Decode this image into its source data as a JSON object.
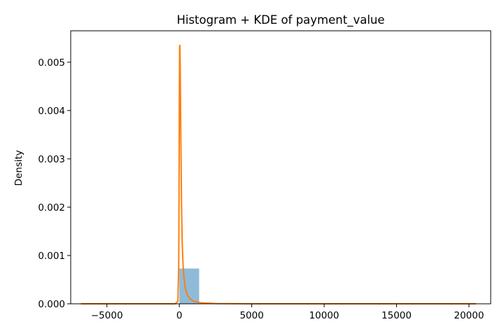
{
  "chart_data": {
    "type": "bar",
    "title": "Histogram + KDE of payment_value",
    "xlabel": "",
    "ylabel": "Density",
    "xlim": [
      -7500,
      21500
    ],
    "ylim": [
      0,
      0.00565
    ],
    "x_ticks": [
      -5000,
      0,
      5000,
      10000,
      15000,
      20000
    ],
    "x_tick_labels": [
      "−5000",
      "0",
      "5000",
      "10000",
      "15000",
      "20000"
    ],
    "y_ticks": [
      0,
      0.001,
      0.002,
      0.003,
      0.004,
      0.005
    ],
    "y_tick_labels": [
      "0.000",
      "0.001",
      "0.002",
      "0.003",
      "0.004",
      "0.005"
    ],
    "grid": false,
    "legend": "none",
    "histogram": {
      "color": "#1f77b4",
      "alpha": 0.5,
      "bins": [
        {
          "x0": 0,
          "x1": 1370,
          "density": 0.00073
        },
        {
          "x0": 1370,
          "x1": 2740,
          "density": 8e-06
        },
        {
          "x0": 2740,
          "x1": 4110,
          "density": 2e-06
        }
      ]
    },
    "series": [
      {
        "type": "line",
        "color": "#ff7f0e",
        "x": [
          -6800,
          -1000,
          -300,
          -100,
          -40,
          -20,
          0,
          20,
          40,
          60,
          80,
          100,
          130,
          160,
          200,
          260,
          330,
          420,
          550,
          750,
          1000,
          1500,
          2500,
          5000,
          10000,
          15000,
          20500
        ],
        "y": [
          0,
          0,
          0,
          5e-05,
          0.0008,
          0.0022,
          0.0042,
          0.0053,
          0.00535,
          0.005,
          0.0043,
          0.0036,
          0.0027,
          0.0019,
          0.00125,
          0.0008,
          0.00052,
          0.00032,
          0.00018,
          0.0001,
          5e-05,
          2e-05,
          5e-06,
          0,
          0,
          0,
          0
        ]
      }
    ]
  }
}
